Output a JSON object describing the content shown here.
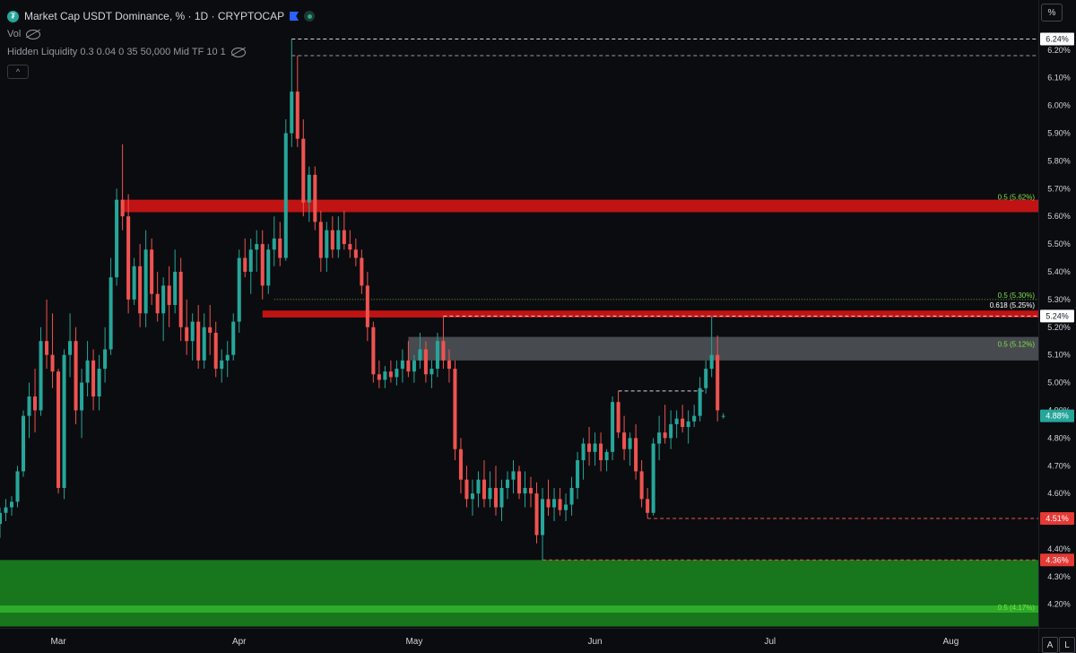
{
  "legend": {
    "title": "Market Cap USDT Dominance, % · 1D · CRYPTOCAP",
    "vol_label": "Vol",
    "indicator_label": "Hidden Liquidity 0.3 0.04 0 35 50,000 Mid TF 10 1",
    "collapse_glyph": "^"
  },
  "scale_button": "%",
  "auto_button": "A",
  "log_button": "L",
  "tv_logo": "17",
  "colors": {
    "up": "#26a69a",
    "down": "#ef5350",
    "background": "#0b0c0f",
    "zone_red": "#d41414",
    "zone_green": "#1b8a1e",
    "fib_text": "#7ee04a"
  },
  "chart_data": {
    "type": "candlestick",
    "title": "Market Cap USDT Dominance, % · 1D · CRYPTOCAP",
    "yunit": "%",
    "ylim": [
      4.115,
      6.29
    ],
    "y_ticks": [
      "6.20%",
      "6.10%",
      "6.00%",
      "5.90%",
      "5.80%",
      "5.70%",
      "5.60%",
      "5.50%",
      "5.40%",
      "5.30%",
      "5.20%",
      "5.10%",
      "5.00%",
      "4.90%",
      "4.80%",
      "4.70%",
      "4.60%",
      "4.50%",
      "4.40%",
      "4.30%",
      "4.20%"
    ],
    "x_labels": [
      {
        "label": "Mar",
        "t": "2024-03-01"
      },
      {
        "label": "Apr",
        "t": "2024-04-01"
      },
      {
        "label": "May",
        "t": "2024-05-01"
      },
      {
        "label": "Jun",
        "t": "2024-06-01"
      },
      {
        "label": "Jul",
        "t": "2024-07-01"
      },
      {
        "label": "Aug",
        "t": "2024-08-01"
      }
    ],
    "xlim": [
      "2024-02-20",
      "2024-08-16"
    ],
    "price_labels": [
      {
        "value": 6.24,
        "text": "6.24%",
        "style": "white"
      },
      {
        "value": 5.24,
        "text": "5.24%",
        "style": "white"
      },
      {
        "value": 4.88,
        "text": "4.88%",
        "style": "teal"
      },
      {
        "value": 4.51,
        "text": "4.51%",
        "style": "red"
      },
      {
        "value": 4.36,
        "text": "4.36%",
        "style": "red"
      }
    ],
    "zones": [
      {
        "color": "red",
        "y0": 5.615,
        "y1": 5.66,
        "t0": "2024-03-12",
        "label": "0.5 (5.62%)",
        "label_value": 5.66
      },
      {
        "color": "red",
        "y0": 5.235,
        "y1": 5.26,
        "t0": "2024-04-05",
        "label": "0.618 (5.25%)",
        "label_value": 5.27
      },
      {
        "color": "grey",
        "y0": 5.08,
        "y1": 5.165,
        "t0": "2024-04-30",
        "label": "0.5 (5.12%)",
        "label_value": 5.13
      },
      {
        "color": "green",
        "y0": 4.12,
        "y1": 4.36,
        "t0": "2024-02-20",
        "label": "0.5 (4.17%)",
        "label_value": 4.18
      }
    ],
    "fib_labels": [
      {
        "text": "0.5 (5.30%)",
        "value": 5.3
      }
    ],
    "candles": [
      [
        "2024-02-20",
        4.49,
        4.55,
        4.44,
        4.53
      ],
      [
        "2024-02-21",
        4.53,
        4.58,
        4.5,
        4.55
      ],
      [
        "2024-02-22",
        4.55,
        4.59,
        4.52,
        4.57
      ],
      [
        "2024-02-23",
        4.57,
        4.7,
        4.55,
        4.68
      ],
      [
        "2024-02-24",
        4.68,
        4.9,
        4.66,
        4.88
      ],
      [
        "2024-02-25",
        4.88,
        5.0,
        4.8,
        4.95
      ],
      [
        "2024-02-26",
        4.95,
        5.05,
        4.82,
        4.9
      ],
      [
        "2024-02-27",
        4.9,
        5.2,
        4.88,
        5.15
      ],
      [
        "2024-02-28",
        5.15,
        5.3,
        5.05,
        5.1
      ],
      [
        "2024-02-29",
        5.1,
        5.25,
        4.98,
        5.04
      ],
      [
        "2024-03-01",
        5.04,
        5.05,
        4.6,
        4.62
      ],
      [
        "2024-03-02",
        4.62,
        5.12,
        4.58,
        5.1
      ],
      [
        "2024-03-03",
        5.1,
        5.25,
        5.02,
        5.15
      ],
      [
        "2024-03-04",
        5.15,
        5.2,
        4.85,
        4.9
      ],
      [
        "2024-03-05",
        4.9,
        5.05,
        4.8,
        5.0
      ],
      [
        "2024-03-06",
        5.0,
        5.15,
        4.95,
        5.08
      ],
      [
        "2024-03-07",
        5.08,
        5.12,
        4.9,
        4.95
      ],
      [
        "2024-03-08",
        4.95,
        5.1,
        4.9,
        5.05
      ],
      [
        "2024-03-09",
        5.05,
        5.2,
        5.0,
        5.12
      ],
      [
        "2024-03-10",
        5.12,
        5.45,
        5.1,
        5.38
      ],
      [
        "2024-03-11",
        5.38,
        5.7,
        5.35,
        5.66
      ],
      [
        "2024-03-12",
        5.66,
        5.86,
        5.55,
        5.6
      ],
      [
        "2024-03-13",
        5.6,
        5.68,
        5.25,
        5.3
      ],
      [
        "2024-03-14",
        5.3,
        5.45,
        5.28,
        5.42
      ],
      [
        "2024-03-15",
        5.42,
        5.5,
        5.2,
        5.25
      ],
      [
        "2024-03-16",
        5.25,
        5.55,
        5.2,
        5.48
      ],
      [
        "2024-03-17",
        5.48,
        5.52,
        5.28,
        5.32
      ],
      [
        "2024-03-18",
        5.32,
        5.4,
        5.22,
        5.25
      ],
      [
        "2024-03-19",
        5.25,
        5.38,
        5.15,
        5.35
      ],
      [
        "2024-03-20",
        5.35,
        5.42,
        5.2,
        5.28
      ],
      [
        "2024-03-21",
        5.28,
        5.48,
        5.25,
        5.4
      ],
      [
        "2024-03-22",
        5.4,
        5.45,
        5.15,
        5.2
      ],
      [
        "2024-03-23",
        5.2,
        5.3,
        5.1,
        5.15
      ],
      [
        "2024-03-24",
        5.15,
        5.25,
        5.08,
        5.22
      ],
      [
        "2024-03-25",
        5.22,
        5.28,
        5.05,
        5.08
      ],
      [
        "2024-03-26",
        5.08,
        5.25,
        5.05,
        5.2
      ],
      [
        "2024-03-27",
        5.2,
        5.28,
        5.1,
        5.18
      ],
      [
        "2024-03-28",
        5.18,
        5.22,
        5.02,
        5.05
      ],
      [
        "2024-03-29",
        5.05,
        5.12,
        5.0,
        5.08
      ],
      [
        "2024-03-30",
        5.08,
        5.15,
        5.02,
        5.1
      ],
      [
        "2024-03-31",
        5.1,
        5.25,
        5.08,
        5.22
      ],
      [
        "2024-04-01",
        5.22,
        5.48,
        5.18,
        5.45
      ],
      [
        "2024-04-02",
        5.45,
        5.52,
        5.38,
        5.4
      ],
      [
        "2024-04-03",
        5.4,
        5.52,
        5.32,
        5.48
      ],
      [
        "2024-04-04",
        5.48,
        5.55,
        5.4,
        5.5
      ],
      [
        "2024-04-05",
        5.5,
        5.55,
        5.3,
        5.35
      ],
      [
        "2024-04-06",
        5.35,
        5.5,
        5.32,
        5.48
      ],
      [
        "2024-04-07",
        5.48,
        5.6,
        5.42,
        5.52
      ],
      [
        "2024-04-08",
        5.52,
        5.58,
        5.42,
        5.45
      ],
      [
        "2024-04-09",
        5.45,
        5.95,
        5.44,
        5.9
      ],
      [
        "2024-04-10",
        5.9,
        6.24,
        5.85,
        6.05
      ],
      [
        "2024-04-11",
        6.05,
        6.18,
        5.85,
        5.88
      ],
      [
        "2024-04-12",
        5.88,
        5.95,
        5.6,
        5.65
      ],
      [
        "2024-04-13",
        5.65,
        5.78,
        5.58,
        5.75
      ],
      [
        "2024-04-14",
        5.75,
        5.78,
        5.55,
        5.58
      ],
      [
        "2024-04-15",
        5.58,
        5.62,
        5.4,
        5.45
      ],
      [
        "2024-04-16",
        5.45,
        5.58,
        5.4,
        5.55
      ],
      [
        "2024-04-17",
        5.55,
        5.6,
        5.45,
        5.48
      ],
      [
        "2024-04-18",
        5.48,
        5.6,
        5.45,
        5.55
      ],
      [
        "2024-04-19",
        5.55,
        5.62,
        5.48,
        5.5
      ],
      [
        "2024-04-20",
        5.5,
        5.55,
        5.45,
        5.48
      ],
      [
        "2024-04-21",
        5.48,
        5.52,
        5.42,
        5.45
      ],
      [
        "2024-04-22",
        5.45,
        5.48,
        5.32,
        5.35
      ],
      [
        "2024-04-23",
        5.35,
        5.4,
        5.15,
        5.2
      ],
      [
        "2024-04-24",
        5.2,
        5.22,
        5.0,
        5.03
      ],
      [
        "2024-04-25",
        5.03,
        5.08,
        4.98,
        5.01
      ],
      [
        "2024-04-26",
        5.01,
        5.06,
        4.98,
        5.04
      ],
      [
        "2024-04-27",
        5.04,
        5.08,
        5.0,
        5.02
      ],
      [
        "2024-04-28",
        5.02,
        5.08,
        4.99,
        5.05
      ],
      [
        "2024-04-29",
        5.05,
        5.12,
        5.0,
        5.08
      ],
      [
        "2024-04-30",
        5.08,
        5.15,
        5.02,
        5.04
      ],
      [
        "2024-05-01",
        5.04,
        5.1,
        5.0,
        5.08
      ],
      [
        "2024-05-02",
        5.08,
        5.18,
        5.05,
        5.12
      ],
      [
        "2024-05-03",
        5.12,
        5.15,
        5.0,
        5.03
      ],
      [
        "2024-05-04",
        5.03,
        5.08,
        4.98,
        5.05
      ],
      [
        "2024-05-05",
        5.05,
        5.18,
        5.02,
        5.15
      ],
      [
        "2024-05-06",
        5.15,
        5.24,
        5.05,
        5.08
      ],
      [
        "2024-05-07",
        5.08,
        5.12,
        5.0,
        5.05
      ],
      [
        "2024-05-08",
        5.05,
        5.08,
        4.72,
        4.76
      ],
      [
        "2024-05-09",
        4.76,
        4.8,
        4.6,
        4.65
      ],
      [
        "2024-05-10",
        4.65,
        4.7,
        4.55,
        4.58
      ],
      [
        "2024-05-11",
        4.58,
        4.65,
        4.52,
        4.6
      ],
      [
        "2024-05-12",
        4.6,
        4.68,
        4.55,
        4.65
      ],
      [
        "2024-05-13",
        4.65,
        4.72,
        4.55,
        4.58
      ],
      [
        "2024-05-14",
        4.58,
        4.68,
        4.55,
        4.62
      ],
      [
        "2024-05-15",
        4.62,
        4.7,
        4.52,
        4.55
      ],
      [
        "2024-05-16",
        4.55,
        4.65,
        4.5,
        4.62
      ],
      [
        "2024-05-17",
        4.62,
        4.68,
        4.58,
        4.65
      ],
      [
        "2024-05-18",
        4.65,
        4.72,
        4.6,
        4.68
      ],
      [
        "2024-05-19",
        4.68,
        4.7,
        4.58,
        4.6
      ],
      [
        "2024-05-20",
        4.6,
        4.68,
        4.55,
        4.62
      ],
      [
        "2024-05-21",
        4.62,
        4.66,
        4.55,
        4.6
      ],
      [
        "2024-05-22",
        4.6,
        4.64,
        4.42,
        4.45
      ],
      [
        "2024-05-23",
        4.45,
        4.62,
        4.36,
        4.58
      ],
      [
        "2024-05-24",
        4.58,
        4.65,
        4.52,
        4.55
      ],
      [
        "2024-05-25",
        4.55,
        4.62,
        4.5,
        4.58
      ],
      [
        "2024-05-26",
        4.58,
        4.62,
        4.52,
        4.54
      ],
      [
        "2024-05-27",
        4.54,
        4.6,
        4.5,
        4.56
      ],
      [
        "2024-05-28",
        4.56,
        4.66,
        4.52,
        4.62
      ],
      [
        "2024-05-29",
        4.62,
        4.75,
        4.58,
        4.72
      ],
      [
        "2024-05-30",
        4.72,
        4.8,
        4.65,
        4.78
      ],
      [
        "2024-05-31",
        4.78,
        4.84,
        4.7,
        4.75
      ],
      [
        "2024-06-01",
        4.75,
        4.82,
        4.7,
        4.78
      ],
      [
        "2024-06-02",
        4.78,
        4.82,
        4.68,
        4.72
      ],
      [
        "2024-06-03",
        4.72,
        4.76,
        4.68,
        4.75
      ],
      [
        "2024-06-04",
        4.75,
        4.95,
        4.72,
        4.93
      ],
      [
        "2024-06-05",
        4.93,
        4.97,
        4.8,
        4.82
      ],
      [
        "2024-06-06",
        4.82,
        4.88,
        4.72,
        4.76
      ],
      [
        "2024-06-07",
        4.76,
        4.82,
        4.7,
        4.8
      ],
      [
        "2024-06-08",
        4.8,
        4.85,
        4.65,
        4.68
      ],
      [
        "2024-06-09",
        4.68,
        4.72,
        4.55,
        4.58
      ],
      [
        "2024-06-10",
        4.58,
        4.62,
        4.51,
        4.53
      ],
      [
        "2024-06-11",
        4.53,
        4.8,
        4.52,
        4.78
      ],
      [
        "2024-06-12",
        4.78,
        4.88,
        4.72,
        4.82
      ],
      [
        "2024-06-13",
        4.82,
        4.92,
        4.78,
        4.8
      ],
      [
        "2024-06-14",
        4.8,
        4.9,
        4.76,
        4.85
      ],
      [
        "2024-06-15",
        4.85,
        4.9,
        4.8,
        4.87
      ],
      [
        "2024-06-16",
        4.87,
        4.92,
        4.82,
        4.84
      ],
      [
        "2024-06-17",
        4.84,
        4.9,
        4.78,
        4.86
      ],
      [
        "2024-06-18",
        4.86,
        4.92,
        4.84,
        4.88
      ],
      [
        "2024-06-19",
        4.88,
        5.02,
        4.86,
        4.98
      ],
      [
        "2024-06-20",
        4.98,
        5.08,
        4.96,
        5.05
      ],
      [
        "2024-06-21",
        5.05,
        5.24,
        5.02,
        5.1
      ],
      [
        "2024-06-22",
        5.1,
        5.17,
        4.86,
        4.9
      ],
      [
        "2024-06-23",
        4.88,
        4.89,
        4.87,
        4.88
      ]
    ]
  }
}
